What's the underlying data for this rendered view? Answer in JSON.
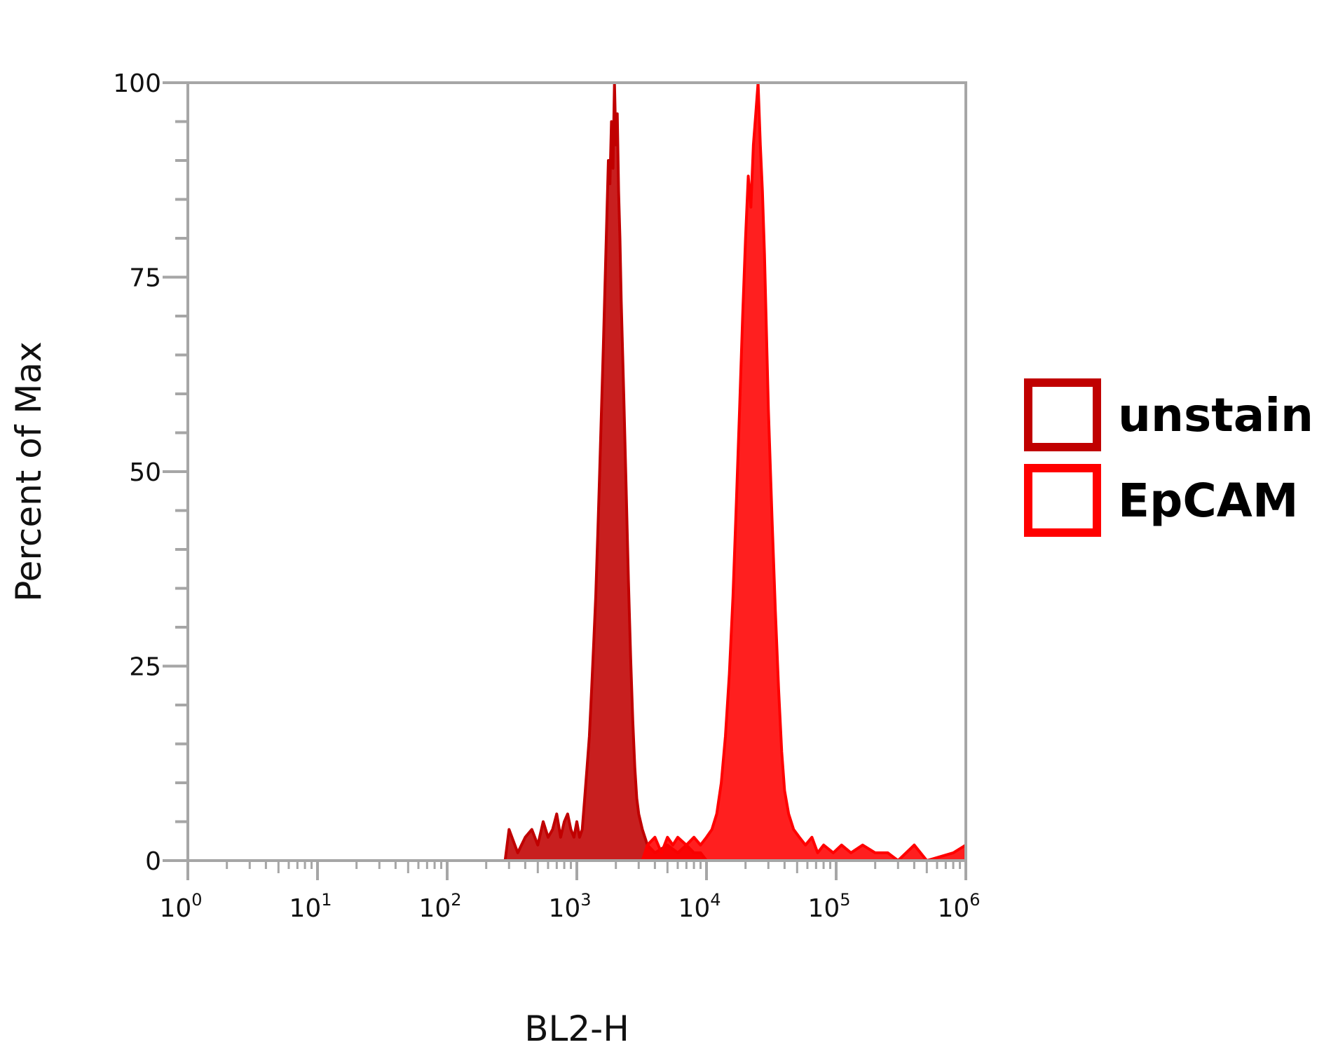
{
  "chart_data": {
    "type": "area",
    "title": "",
    "xlabel": "BL2-H",
    "ylabel": "Percent of Max",
    "xscale": "log",
    "xlim": [
      1,
      1000000
    ],
    "ylim": [
      0,
      100
    ],
    "x_ticks": [
      {
        "base": "10",
        "exp": "0"
      },
      {
        "base": "10",
        "exp": "1"
      },
      {
        "base": "10",
        "exp": "2"
      },
      {
        "base": "10",
        "exp": "3"
      },
      {
        "base": "10",
        "exp": "4"
      },
      {
        "base": "10",
        "exp": "5"
      },
      {
        "base": "10",
        "exp": "6"
      }
    ],
    "y_ticks": [
      "0",
      "25",
      "50",
      "75",
      "100"
    ],
    "grid": false,
    "legend_position": "right",
    "series": [
      {
        "name": "unstain",
        "color": "#c00000",
        "points": [
          [
            280,
            0
          ],
          [
            300,
            4
          ],
          [
            350,
            1
          ],
          [
            400,
            3
          ],
          [
            450,
            4
          ],
          [
            500,
            2
          ],
          [
            550,
            5
          ],
          [
            600,
            3
          ],
          [
            650,
            4
          ],
          [
            700,
            6
          ],
          [
            750,
            3
          ],
          [
            800,
            5
          ],
          [
            850,
            6
          ],
          [
            900,
            4
          ],
          [
            950,
            3
          ],
          [
            1000,
            5
          ],
          [
            1050,
            3
          ],
          [
            1100,
            4
          ],
          [
            1150,
            8
          ],
          [
            1200,
            12
          ],
          [
            1250,
            16
          ],
          [
            1300,
            22
          ],
          [
            1350,
            28
          ],
          [
            1400,
            34
          ],
          [
            1450,
            42
          ],
          [
            1500,
            50
          ],
          [
            1550,
            58
          ],
          [
            1600,
            66
          ],
          [
            1650,
            74
          ],
          [
            1700,
            82
          ],
          [
            1750,
            90
          ],
          [
            1800,
            87
          ],
          [
            1850,
            95
          ],
          [
            1900,
            89
          ],
          [
            1950,
            100
          ],
          [
            2000,
            92
          ],
          [
            2050,
            96
          ],
          [
            2100,
            86
          ],
          [
            2150,
            80
          ],
          [
            2200,
            72
          ],
          [
            2300,
            60
          ],
          [
            2400,
            48
          ],
          [
            2500,
            36
          ],
          [
            2600,
            26
          ],
          [
            2700,
            18
          ],
          [
            2800,
            12
          ],
          [
            2900,
            8
          ],
          [
            3000,
            6
          ],
          [
            3200,
            4
          ],
          [
            3500,
            2
          ],
          [
            4000,
            1
          ],
          [
            5000,
            2
          ],
          [
            6000,
            1
          ],
          [
            7000,
            2
          ],
          [
            8000,
            1
          ],
          [
            9000,
            1
          ],
          [
            10000,
            0
          ]
        ]
      },
      {
        "name": "EpCAM",
        "color": "#ff0000",
        "points": [
          [
            3200,
            0
          ],
          [
            3500,
            2
          ],
          [
            4000,
            3
          ],
          [
            4500,
            1
          ],
          [
            5000,
            3
          ],
          [
            5500,
            2
          ],
          [
            6000,
            3
          ],
          [
            7000,
            2
          ],
          [
            8000,
            3
          ],
          [
            9000,
            2
          ],
          [
            10000,
            3
          ],
          [
            11000,
            4
          ],
          [
            12000,
            6
          ],
          [
            13000,
            10
          ],
          [
            14000,
            16
          ],
          [
            15000,
            24
          ],
          [
            16000,
            34
          ],
          [
            17000,
            46
          ],
          [
            18000,
            58
          ],
          [
            19000,
            70
          ],
          [
            20000,
            80
          ],
          [
            21000,
            88
          ],
          [
            22000,
            84
          ],
          [
            23000,
            92
          ],
          [
            24000,
            96
          ],
          [
            25000,
            100
          ],
          [
            26000,
            92
          ],
          [
            27000,
            86
          ],
          [
            28000,
            78
          ],
          [
            29000,
            68
          ],
          [
            30000,
            58
          ],
          [
            32000,
            44
          ],
          [
            34000,
            32
          ],
          [
            36000,
            22
          ],
          [
            38000,
            14
          ],
          [
            40000,
            9
          ],
          [
            43000,
            6
          ],
          [
            47000,
            4
          ],
          [
            52000,
            3
          ],
          [
            58000,
            2
          ],
          [
            65000,
            3
          ],
          [
            72000,
            1
          ],
          [
            80000,
            2
          ],
          [
            95000,
            1
          ],
          [
            110000,
            2
          ],
          [
            130000,
            1
          ],
          [
            160000,
            2
          ],
          [
            200000,
            1
          ],
          [
            250000,
            1
          ],
          [
            300000,
            0
          ],
          [
            400000,
            2
          ],
          [
            500000,
            0
          ],
          [
            800000,
            1
          ],
          [
            1000000,
            2
          ]
        ]
      }
    ]
  }
}
